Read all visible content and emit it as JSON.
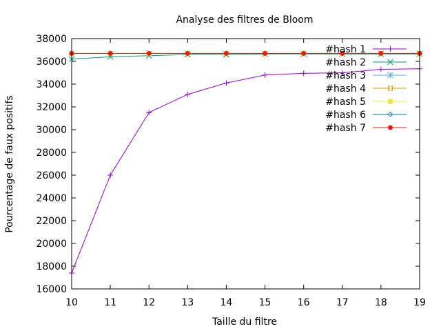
{
  "chart_data": {
    "type": "line",
    "title": "Analyse des filtres de Bloom",
    "xlabel": "Taille du filtre",
    "ylabel": "Pourcentage de faux positifs",
    "xlim": [
      10,
      19
    ],
    "ylim": [
      16000,
      38000
    ],
    "x_ticks": [
      "10",
      "11",
      "12",
      "13",
      "14",
      "15",
      "16",
      "17",
      "18",
      "19"
    ],
    "y_ticks": [
      "16000",
      "18000",
      "20000",
      "22000",
      "24000",
      "26000",
      "28000",
      "30000",
      "32000",
      "34000",
      "36000",
      "38000"
    ],
    "grid": false,
    "legend_position": "top-right",
    "x": [
      10,
      11,
      12,
      13,
      14,
      15,
      16,
      17,
      18,
      19
    ],
    "series": [
      {
        "name": "#hash 1",
        "color": "#9400d3",
        "marker": "plus",
        "values": [
          17400,
          26000,
          31500,
          33100,
          34100,
          34800,
          34950,
          35000,
          35300,
          35350
        ]
      },
      {
        "name": "#hash 2",
        "color": "#009e73",
        "marker": "cross",
        "values": [
          36200,
          36400,
          36500,
          36600,
          36600,
          36650,
          36650,
          36650,
          36650,
          36650
        ]
      },
      {
        "name": "#hash 3",
        "color": "#56b4e9",
        "marker": "star",
        "values": [
          36700,
          36700,
          36700,
          36700,
          36700,
          36700,
          36700,
          36700,
          36700,
          36700
        ]
      },
      {
        "name": "#hash 4",
        "color": "#e69f00",
        "marker": "square",
        "values": [
          36700,
          36700,
          36700,
          36700,
          36700,
          36700,
          36700,
          36700,
          36700,
          36700
        ]
      },
      {
        "name": "#hash 5",
        "color": "#f0e442",
        "marker": "filled-square",
        "values": [
          36700,
          36700,
          36700,
          36700,
          36700,
          36700,
          36700,
          36700,
          36700,
          36700
        ]
      },
      {
        "name": "#hash 6",
        "color": "#0072b2",
        "marker": "circle",
        "values": [
          36700,
          36700,
          36700,
          36700,
          36700,
          36700,
          36700,
          36700,
          36700,
          36700
        ]
      },
      {
        "name": "#hash 7",
        "color": "#e51e10",
        "marker": "filled-circle",
        "values": [
          36700,
          36700,
          36700,
          36700,
          36700,
          36700,
          36700,
          36700,
          36700,
          36700
        ]
      }
    ]
  }
}
